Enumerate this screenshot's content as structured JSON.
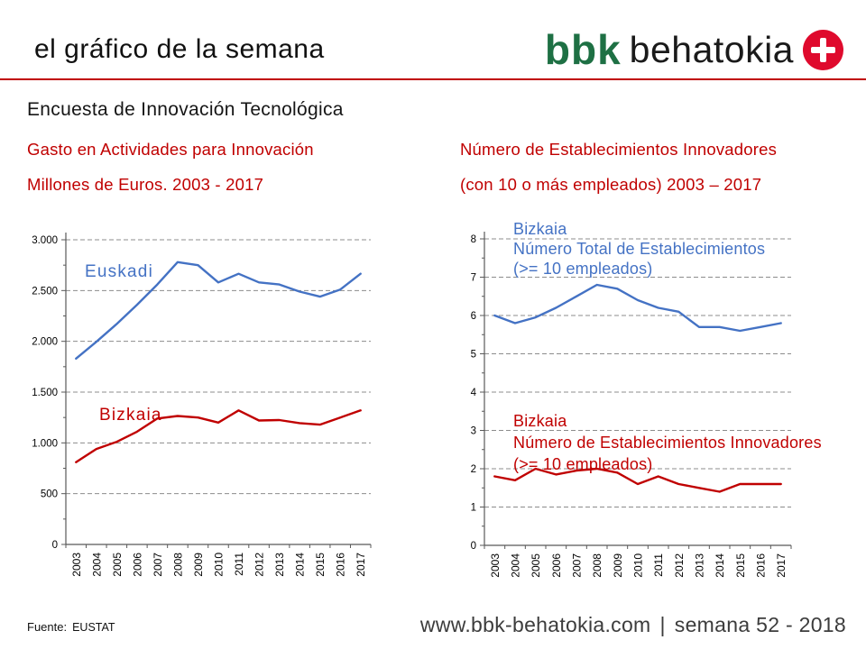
{
  "header": {
    "title": "el gráfico de la semana",
    "logo_bbk": "bbk",
    "logo_behatokia": "behatokia"
  },
  "section_title": "Encuesta de Innovación Tecnológica",
  "left_heading": {
    "line1": "Gasto en Actividades para Innovación",
    "line2": "Millones de Euros. 2003 - 2017"
  },
  "right_heading": {
    "line1": "Número de Establecimientos Innovadores",
    "line2": "(con 10 o más empleados) 2003 – 2017"
  },
  "footer": {
    "source_label": "Fuente:",
    "source_value": "EUSTAT",
    "website": "www.bbk-behatokia.com",
    "separator": "|",
    "week": "semana 52 - 2018"
  },
  "colors": {
    "accent_red": "#C00000",
    "series_blue": "#4472C4",
    "series_red": "#C00000",
    "logo_green": "#1E7044",
    "logo_badge_red": "#DF0A2D",
    "grid_gray": "#8c8c8c",
    "axis_gray": "#595959"
  },
  "chart_data": [
    {
      "type": "line",
      "title": "Gasto en Actividades para Innovación. Millones de Euros. 2003 - 2017",
      "categories": [
        "2003",
        "2004",
        "2005",
        "2006",
        "2007",
        "2008",
        "2009",
        "2010",
        "2011",
        "2012",
        "2013",
        "2014",
        "2015",
        "2016",
        "2017"
      ],
      "ylim": [
        0,
        3000
      ],
      "ytick_step": 500,
      "yminor_step": 250,
      "ytick_labels": [
        "0",
        "500",
        "1.000",
        "1.500",
        "2.000",
        "2.500",
        "3.000"
      ],
      "grid": "dashed-horizontal",
      "legend": "in-plot labels",
      "series": [
        {
          "name": "Euskadi",
          "color": "#4472C4",
          "label_lines": [
            "Euskadi"
          ],
          "values": [
            1830,
            1995,
            2170,
            2360,
            2560,
            2780,
            2750,
            2580,
            2665,
            2580,
            2560,
            2490,
            2440,
            2510,
            2665
          ]
        },
        {
          "name": "Bizkaia",
          "color": "#C00000",
          "label_lines": [
            "Bizkaia"
          ],
          "values": [
            810,
            940,
            1010,
            1110,
            1240,
            1265,
            1250,
            1200,
            1320,
            1220,
            1225,
            1195,
            1180,
            1250,
            1320
          ]
        }
      ]
    },
    {
      "type": "line",
      "title": "Número de Establecimientos Innovadores (con 10 o más empleados) 2003 – 2017",
      "categories": [
        "2003",
        "2004",
        "2005",
        "2006",
        "2007",
        "2008",
        "2009",
        "2010",
        "2011",
        "2012",
        "2013",
        "2014",
        "2015",
        "2016",
        "2017"
      ],
      "ylim": [
        0,
        8
      ],
      "ytick_step": 1,
      "yminor_step": 0.5,
      "ytick_labels": [
        "0",
        "1",
        "2",
        "3",
        "4",
        "5",
        "6",
        "7",
        "8"
      ],
      "grid": "dashed-horizontal",
      "legend": "in-plot labels",
      "series": [
        {
          "name": "Bizkaia - Número Total de Establecimientos (>= 10 empleados)",
          "color": "#4472C4",
          "label_lines": [
            "Bizkaia",
            "Número Total de Establecimientos",
            "(>= 10 empleados)"
          ],
          "values": [
            6.0,
            5.8,
            5.95,
            6.2,
            6.5,
            6.8,
            6.7,
            6.4,
            6.2,
            6.1,
            5.7,
            5.7,
            5.6,
            5.7,
            5.8
          ]
        },
        {
          "name": "Bizkaia - Número de Establecimientos Innovadores (>= 10 empleados)",
          "color": "#C00000",
          "label_lines": [
            "Bizkaia",
            "Número de Establecimientos Innovadores",
            "(>= 10 empleados)"
          ],
          "values": [
            1.8,
            1.7,
            2.0,
            1.85,
            1.95,
            2.0,
            1.9,
            1.6,
            1.8,
            1.6,
            1.5,
            1.4,
            1.6,
            1.6,
            1.6
          ]
        }
      ]
    }
  ]
}
